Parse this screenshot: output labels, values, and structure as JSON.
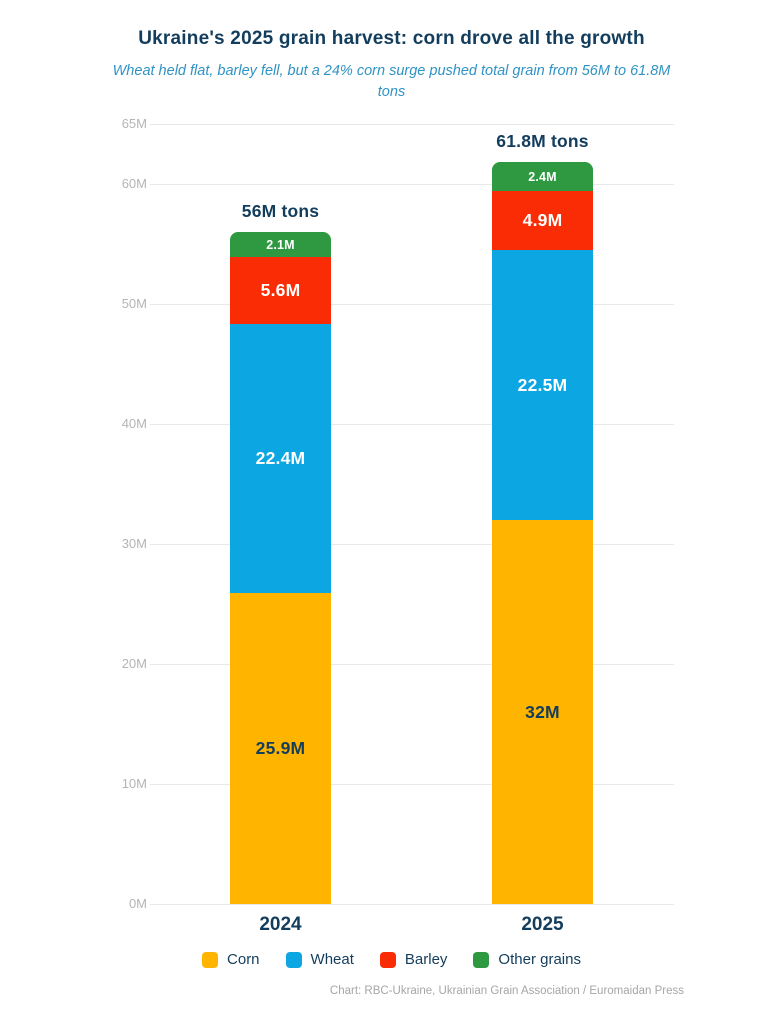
{
  "header": {
    "title": "Ukraine's 2025 grain harvest: corn drove all the growth",
    "subtitle": "Wheat held flat, barley fell, but a 24% corn surge pushed total grain from 56M to 61.8M tons"
  },
  "chart_data": {
    "type": "bar",
    "stacked": true,
    "title": "Ukraine's 2025 grain harvest: corn drove all the growth",
    "subtitle": "Wheat held flat, barley fell, but a 24% corn surge pushed total grain from 56M to 61.8M tons",
    "categories": [
      "2024",
      "2025"
    ],
    "series": [
      {
        "name": "Corn",
        "color": "#FFB400",
        "values": [
          25.9,
          32
        ],
        "value_labels": [
          "25.9M",
          "32M"
        ],
        "label_color": "#133D5C"
      },
      {
        "name": "Wheat",
        "color": "#0CA6E2",
        "values": [
          22.4,
          22.5
        ],
        "value_labels": [
          "22.4M",
          "22.5M"
        ],
        "label_color": "#FFFFFF"
      },
      {
        "name": "Barley",
        "color": "#F92C06",
        "values": [
          5.6,
          4.9
        ],
        "value_labels": [
          "5.6M",
          "4.9M"
        ],
        "label_color": "#FFFFFF"
      },
      {
        "name": "Other grains",
        "color": "#2E9940",
        "values": [
          2.1,
          2.4
        ],
        "value_labels": [
          "2.1M",
          "2.4M"
        ],
        "label_color": "#FFFFFF"
      }
    ],
    "totals": [
      56,
      61.8
    ],
    "total_labels": [
      "56M tons",
      "61.8M tons"
    ],
    "y_ticks": [
      {
        "value": 0,
        "label": "0M"
      },
      {
        "value": 10,
        "label": "10M"
      },
      {
        "value": 20,
        "label": "20M"
      },
      {
        "value": 30,
        "label": "30M"
      },
      {
        "value": 40,
        "label": "40M"
      },
      {
        "value": 50,
        "label": "50M"
      },
      {
        "value": 60,
        "label": "60M"
      },
      {
        "value": 65,
        "label": "65M"
      }
    ],
    "ylim": [
      0,
      65
    ],
    "xlabel": "",
    "ylabel": "",
    "grid": true,
    "legend_position": "bottom"
  },
  "footer": {
    "credit": "Chart: RBC-Ukraine, Ukrainian Grain Association / Euromaidan Press"
  },
  "theme": {
    "title_color": "#133D5C",
    "subtitle_color": "#3093C5",
    "axis_label_color": "#B5B5B5",
    "gridline_color": "#E9E9E9",
    "credit_color": "#A6A6A6",
    "background": "#FFFFFF"
  }
}
